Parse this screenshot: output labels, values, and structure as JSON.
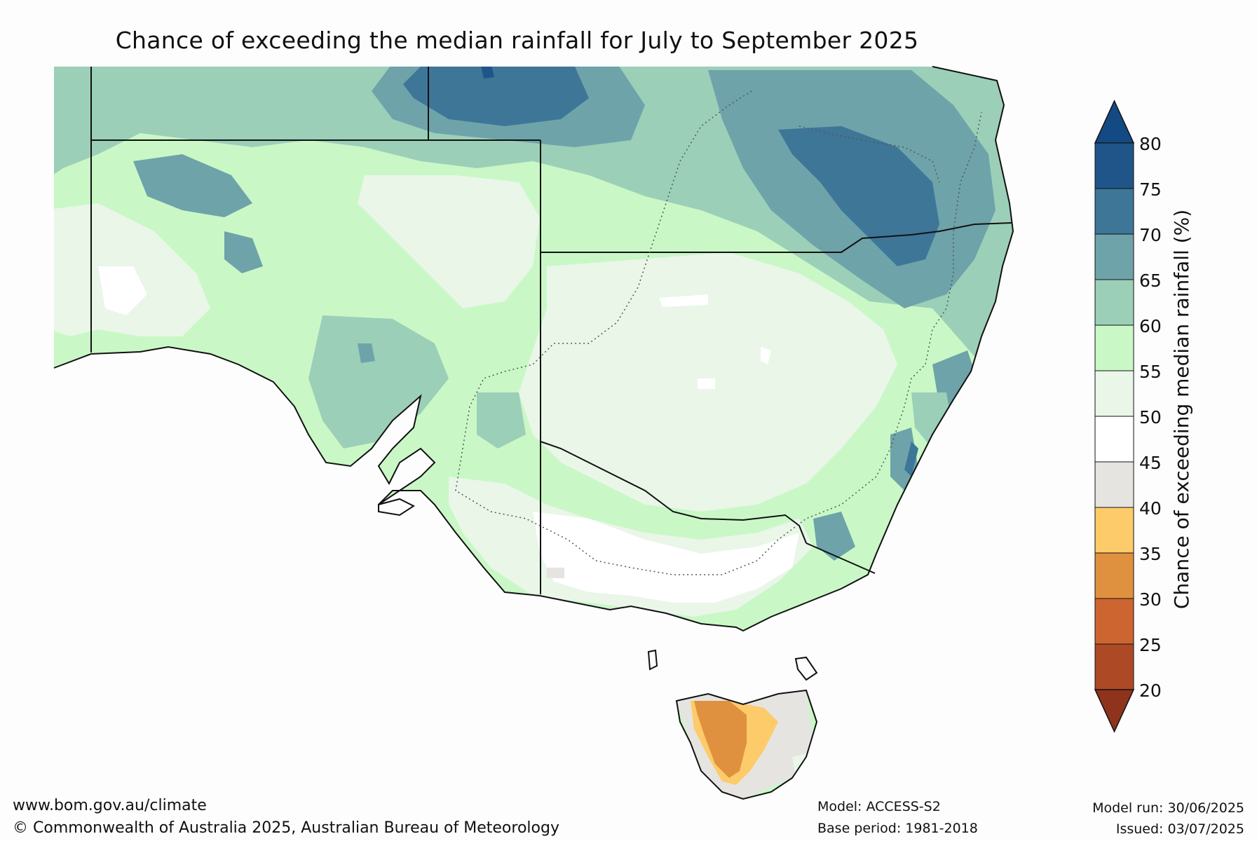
{
  "title": "Chance of exceeding the median rainfall for July to September 2025",
  "legend": {
    "label": "Chance of exceeding median rainfall (%)",
    "ticks": [
      "80",
      "75",
      "70",
      "65",
      "60",
      "55",
      "50",
      "45",
      "40",
      "35",
      "30",
      "25",
      "20"
    ],
    "bands": [
      {
        "range": "75-80",
        "color": "#1f5588"
      },
      {
        "range": "70-75",
        "color": "#3e7698"
      },
      {
        "range": "65-70",
        "color": "#6ea3aa"
      },
      {
        "range": "60-65",
        "color": "#9ccfb8"
      },
      {
        "range": "55-60",
        "color": "#c9f8c6"
      },
      {
        "range": "50-55",
        "color": "#e9f6e8"
      },
      {
        "range": "45-50",
        "color": "#ffffff"
      },
      {
        "range": "40-45",
        "color": "#e6e4e1"
      },
      {
        "range": "35-40",
        "color": "#fdcb6a"
      },
      {
        "range": "30-35",
        "color": "#e0913f"
      },
      {
        "range": "25-30",
        "color": "#cd6531"
      },
      {
        "range": "20-25",
        "color": "#ad4a25"
      }
    ],
    "over_color": "#134a83",
    "under_color": "#8f331c"
  },
  "footer": {
    "website": "www.bom.gov.au/climate",
    "copyright": "© Commonwealth of Australia 2025, Australian Bureau of Meteorology",
    "model": "Model: ACCESS-S2",
    "base_period": "Base period: 1981-2018",
    "model_run": "Model run: 30/06/2025",
    "issued": "Issued: 03/07/2025"
  }
}
